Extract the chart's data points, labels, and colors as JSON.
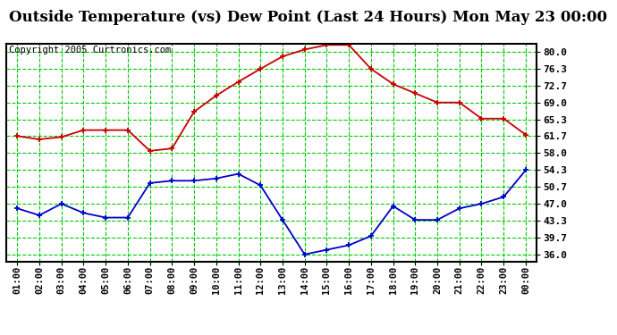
{
  "title": "Outside Temperature (vs) Dew Point (Last 24 Hours) Mon May 23 00:00",
  "copyright": "Copyright 2005 Curtronics.com",
  "hours": [
    "01:00",
    "02:00",
    "03:00",
    "04:00",
    "05:00",
    "06:00",
    "07:00",
    "08:00",
    "09:00",
    "10:00",
    "11:00",
    "12:00",
    "13:00",
    "14:00",
    "15:00",
    "16:00",
    "17:00",
    "18:00",
    "19:00",
    "20:00",
    "21:00",
    "22:00",
    "23:00",
    "00:00"
  ],
  "temp": [
    61.7,
    61.0,
    61.5,
    63.0,
    63.0,
    63.0,
    58.5,
    59.0,
    67.0,
    70.5,
    73.5,
    76.3,
    79.0,
    80.5,
    81.5,
    81.5,
    76.3,
    73.0,
    71.0,
    69.0,
    69.0,
    65.5,
    65.5,
    62.0
  ],
  "dew": [
    46.0,
    44.5,
    47.0,
    45.0,
    44.0,
    44.0,
    51.5,
    52.0,
    52.0,
    52.5,
    53.5,
    51.0,
    43.5,
    36.0,
    37.0,
    38.0,
    40.0,
    46.5,
    43.5,
    43.5,
    46.0,
    47.0,
    48.5,
    54.3
  ],
  "temp_color": "#cc0000",
  "dew_color": "#0000cc",
  "bg_color": "#ffffff",
  "plot_bg_color": "#ffffff",
  "grid_color": "#00cc00",
  "title_fontsize": 12,
  "copyright_fontsize": 7.5,
  "yticks": [
    36.0,
    39.7,
    43.3,
    47.0,
    50.7,
    54.3,
    58.0,
    61.7,
    65.3,
    69.0,
    72.7,
    76.3,
    80.0
  ],
  "ylim": [
    34.5,
    81.8
  ],
  "marker": "+"
}
